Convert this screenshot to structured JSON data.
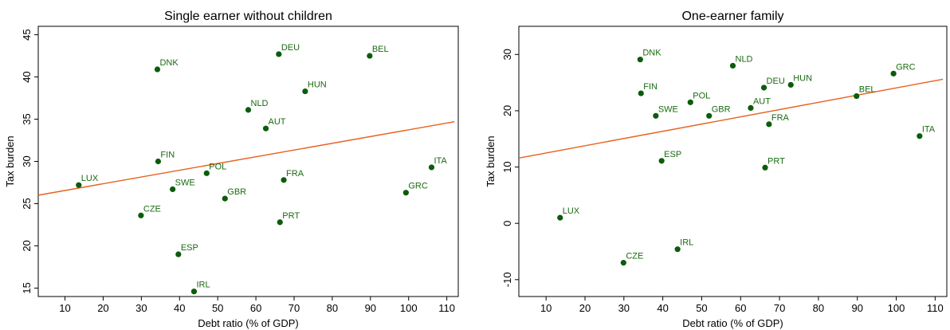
{
  "colors": {
    "points": "#0b5c0b",
    "labels": "#1a6b12",
    "fit_line": "#e8601c"
  },
  "chart_data": [
    {
      "type": "scatter",
      "title": "Single earner without children",
      "xlabel": "Debt ratio (% of GDP)",
      "ylabel": "Tax burden",
      "xlim": [
        3,
        113
      ],
      "ylim": [
        14,
        46
      ],
      "xticks": [
        10,
        20,
        30,
        40,
        50,
        60,
        70,
        80,
        90,
        100,
        110
      ],
      "yticks": [
        15,
        20,
        25,
        30,
        35,
        40,
        45
      ],
      "grid": false,
      "points": [
        {
          "label": "DNK",
          "x": 34.2,
          "y": 40.9
        },
        {
          "label": "DEU",
          "x": 66.0,
          "y": 42.7
        },
        {
          "label": "BEL",
          "x": 89.8,
          "y": 42.5
        },
        {
          "label": "HUN",
          "x": 72.9,
          "y": 38.3
        },
        {
          "label": "NLD",
          "x": 58.0,
          "y": 36.1
        },
        {
          "label": "AUT",
          "x": 62.6,
          "y": 33.9
        },
        {
          "label": "FIN",
          "x": 34.4,
          "y": 30.0
        },
        {
          "label": "POL",
          "x": 47.1,
          "y": 28.6
        },
        {
          "label": "LUX",
          "x": 13.6,
          "y": 27.2
        },
        {
          "label": "SWE",
          "x": 38.2,
          "y": 26.7
        },
        {
          "label": "FRA",
          "x": 67.3,
          "y": 27.8
        },
        {
          "label": "ITA",
          "x": 106.0,
          "y": 29.3
        },
        {
          "label": "GRC",
          "x": 99.3,
          "y": 26.3
        },
        {
          "label": "GBR",
          "x": 51.9,
          "y": 25.6
        },
        {
          "label": "CZE",
          "x": 29.9,
          "y": 23.6
        },
        {
          "label": "PRT",
          "x": 66.3,
          "y": 22.8
        },
        {
          "label": "ESP",
          "x": 39.7,
          "y": 19.0
        },
        {
          "label": "IRL",
          "x": 43.8,
          "y": 14.6
        }
      ],
      "fit_line": {
        "x": [
          3,
          112
        ],
        "y": [
          26.0,
          34.7
        ]
      }
    },
    {
      "type": "scatter",
      "title": "One-earner family",
      "xlabel": "Debt ratio (% of GDP)",
      "ylabel": "Tax burden",
      "xlim": [
        3,
        113
      ],
      "ylim": [
        -13,
        35
      ],
      "xticks": [
        10,
        20,
        30,
        40,
        50,
        60,
        70,
        80,
        90,
        100,
        110
      ],
      "yticks": [
        -10,
        0,
        10,
        20,
        30
      ],
      "grid": false,
      "points": [
        {
          "label": "DNK",
          "x": 34.2,
          "y": 29.1
        },
        {
          "label": "NLD",
          "x": 58.0,
          "y": 28.0
        },
        {
          "label": "GRC",
          "x": 99.3,
          "y": 26.6
        },
        {
          "label": "FIN",
          "x": 34.4,
          "y": 23.1
        },
        {
          "label": "DEU",
          "x": 66.0,
          "y": 24.1
        },
        {
          "label": "HUN",
          "x": 72.9,
          "y": 24.6
        },
        {
          "label": "POL",
          "x": 47.1,
          "y": 21.5
        },
        {
          "label": "BEL",
          "x": 89.8,
          "y": 22.6
        },
        {
          "label": "AUT",
          "x": 62.6,
          "y": 20.5
        },
        {
          "label": "SWE",
          "x": 38.2,
          "y": 19.1
        },
        {
          "label": "GBR",
          "x": 51.9,
          "y": 19.1
        },
        {
          "label": "FRA",
          "x": 67.3,
          "y": 17.6
        },
        {
          "label": "ITA",
          "x": 106.0,
          "y": 15.5
        },
        {
          "label": "ESP",
          "x": 39.7,
          "y": 11.1
        },
        {
          "label": "PRT",
          "x": 66.3,
          "y": 9.9
        },
        {
          "label": "LUX",
          "x": 13.6,
          "y": 1.0
        },
        {
          "label": "IRL",
          "x": 43.8,
          "y": -4.6
        },
        {
          "label": "CZE",
          "x": 29.9,
          "y": -7.0
        }
      ],
      "fit_line": {
        "x": [
          3,
          112
        ],
        "y": [
          11.6,
          25.6
        ]
      }
    }
  ]
}
